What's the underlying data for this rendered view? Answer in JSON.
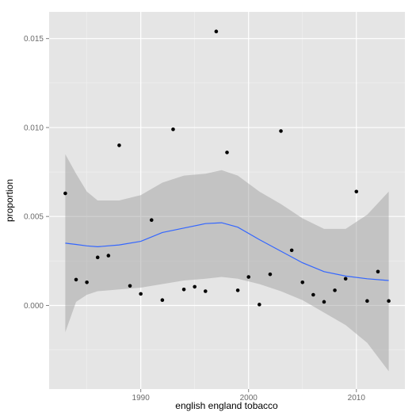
{
  "chart_data": {
    "type": "scatter",
    "title": "",
    "xlabel": "english england tobacco",
    "ylabel": "proportion",
    "xlim": [
      1981.5,
      2014.5
    ],
    "ylim": [
      -0.0047,
      0.0165
    ],
    "x_ticks": [
      1990,
      2000,
      2010
    ],
    "x_tick_labels": [
      "1990",
      "2000",
      "2010"
    ],
    "y_ticks": [
      0.0,
      0.005,
      0.01,
      0.015
    ],
    "y_tick_labels": [
      "0.000",
      "0.005",
      "0.010",
      "0.015"
    ],
    "grid": true,
    "colors": {
      "panel": "#e5e5e5",
      "grid_major": "#ffffff",
      "grid_minor": "#f2f2f2",
      "points": "#000000",
      "smooth_line": "#3366ff",
      "confidence_band": "#999999"
    },
    "points": [
      {
        "x": 1983,
        "y": 0.0063
      },
      {
        "x": 1984,
        "y": 0.00145
      },
      {
        "x": 1985,
        "y": 0.0013
      },
      {
        "x": 1986,
        "y": 0.0027
      },
      {
        "x": 1987,
        "y": 0.0028
      },
      {
        "x": 1988,
        "y": 0.009
      },
      {
        "x": 1989,
        "y": 0.0011
      },
      {
        "x": 1990,
        "y": 0.00065
      },
      {
        "x": 1991,
        "y": 0.0048
      },
      {
        "x": 1992,
        "y": 0.0003
      },
      {
        "x": 1993,
        "y": 0.0099
      },
      {
        "x": 1994,
        "y": 0.0009
      },
      {
        "x": 1995,
        "y": 0.00105
      },
      {
        "x": 1996,
        "y": 0.0008
      },
      {
        "x": 1997,
        "y": 0.0154
      },
      {
        "x": 1998,
        "y": 0.0086
      },
      {
        "x": 1999,
        "y": 0.00085
      },
      {
        "x": 2000,
        "y": 0.0016
      },
      {
        "x": 2001,
        "y": 5e-05
      },
      {
        "x": 2002,
        "y": 0.00175
      },
      {
        "x": 2003,
        "y": 0.0098
      },
      {
        "x": 2004,
        "y": 0.0031
      },
      {
        "x": 2005,
        "y": 0.0013
      },
      {
        "x": 2006,
        "y": 0.0006
      },
      {
        "x": 2007,
        "y": 0.0002
      },
      {
        "x": 2008,
        "y": 0.00085
      },
      {
        "x": 2009,
        "y": 0.0015
      },
      {
        "x": 2010,
        "y": 0.0064
      },
      {
        "x": 2011,
        "y": 0.00025
      },
      {
        "x": 2012,
        "y": 0.0019
      },
      {
        "x": 2013,
        "y": 0.00025
      }
    ],
    "smooth": [
      {
        "x": 1983,
        "y": 0.0035,
        "lower": -0.0015,
        "upper": 0.0085
      },
      {
        "x": 1984,
        "y": 0.00343,
        "lower": 0.0002,
        "upper": 0.0074
      },
      {
        "x": 1985,
        "y": 0.00335,
        "lower": 0.0006,
        "upper": 0.0064
      },
      {
        "x": 1986,
        "y": 0.0033,
        "lower": 0.0008,
        "upper": 0.0059
      },
      {
        "x": 1988,
        "y": 0.0034,
        "lower": 0.0009,
        "upper": 0.0059
      },
      {
        "x": 1990,
        "y": 0.0036,
        "lower": 0.001,
        "upper": 0.0062
      },
      {
        "x": 1992,
        "y": 0.0041,
        "lower": 0.0012,
        "upper": 0.0069
      },
      {
        "x": 1994,
        "y": 0.00435,
        "lower": 0.0014,
        "upper": 0.0073
      },
      {
        "x": 1996,
        "y": 0.0046,
        "lower": 0.0015,
        "upper": 0.0074
      },
      {
        "x": 1997.5,
        "y": 0.00465,
        "lower": 0.0016,
        "upper": 0.0076
      },
      {
        "x": 1999,
        "y": 0.0044,
        "lower": 0.0015,
        "upper": 0.0073
      },
      {
        "x": 2001,
        "y": 0.0037,
        "lower": 0.0012,
        "upper": 0.0064
      },
      {
        "x": 2003,
        "y": 0.00305,
        "lower": 0.0008,
        "upper": 0.0057
      },
      {
        "x": 2005,
        "y": 0.0024,
        "lower": 0.0003,
        "upper": 0.0049
      },
      {
        "x": 2007,
        "y": 0.0019,
        "lower": -0.0004,
        "upper": 0.0043
      },
      {
        "x": 2009,
        "y": 0.00165,
        "lower": -0.0011,
        "upper": 0.0043
      },
      {
        "x": 2011,
        "y": 0.0015,
        "lower": -0.0021,
        "upper": 0.0051
      },
      {
        "x": 2013,
        "y": 0.0014,
        "lower": -0.0037,
        "upper": 0.0064
      }
    ]
  }
}
